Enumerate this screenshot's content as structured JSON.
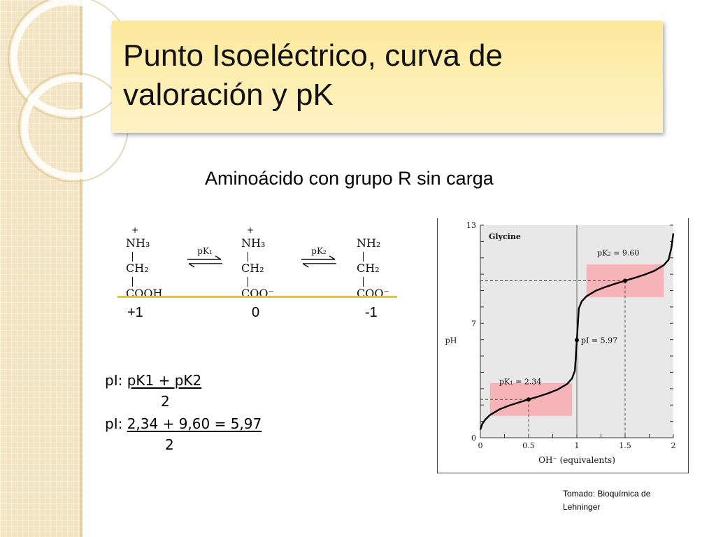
{
  "slide": {
    "title_line1": "Punto Isoeléctrico, curva de",
    "title_line2": "valoración y pK",
    "subtitle": "Aminoácido con grupo R sin carga"
  },
  "scheme": {
    "species": [
      {
        "charge_sign": "+",
        "top": "NH3",
        "middle": "CH2",
        "bottom": "COOH"
      },
      {
        "charge_sign": "+",
        "top": "NH3",
        "middle": "CH2",
        "bottom": "COO⁻"
      },
      {
        "charge_sign": "",
        "top": "NH2",
        "middle": "CH2",
        "bottom": "COO⁻"
      }
    ],
    "arrows": [
      {
        "label": "pK₁"
      },
      {
        "label": "pK₂"
      }
    ],
    "net_charges": [
      "+1",
      "0",
      "-1"
    ]
  },
  "formulas": {
    "line1_prefix": "pI:",
    "line1_numerator": "pK1 + pK2",
    "line1_denominator": "2",
    "line2_prefix": "pI:",
    "line2_numerator": "2,34 + 9,60 = 5,97",
    "line2_denominator": "2"
  },
  "chart_data": {
    "type": "line",
    "title": "Glycine",
    "xlabel": "OH⁻ (equivalents)",
    "ylabel": "pH",
    "xlim": [
      0,
      2
    ],
    "ylim": [
      0,
      13
    ],
    "x_ticks": [
      "0",
      "0.5",
      "1",
      "1.5",
      "2"
    ],
    "y_ticks": [
      "0",
      "7",
      "13"
    ],
    "series": [
      {
        "x": [
          0,
          0.02,
          0.05,
          0.1,
          0.2,
          0.3,
          0.4,
          0.5,
          0.6,
          0.7,
          0.8,
          0.9,
          0.95,
          0.98,
          1.0,
          1.02,
          1.05,
          1.1,
          1.2,
          1.3,
          1.4,
          1.5,
          1.6,
          1.7,
          1.8,
          1.9,
          1.95,
          1.98,
          2.0
        ],
        "y": [
          0.5,
          0.85,
          1.1,
          1.39,
          1.74,
          1.97,
          2.16,
          2.34,
          2.52,
          2.71,
          2.94,
          3.29,
          3.62,
          4.1,
          5.97,
          7.9,
          8.34,
          8.65,
          9.0,
          9.23,
          9.42,
          9.6,
          9.78,
          9.97,
          10.2,
          10.55,
          10.88,
          11.6,
          12.5
        ]
      }
    ],
    "annotations": [
      {
        "text": "pK₁ = 2.34",
        "x": 0.5,
        "y": 2.34
      },
      {
        "text": "pI = 5.97",
        "x": 1.0,
        "y": 5.97
      },
      {
        "text": "pK₂ = 9.60",
        "x": 1.5,
        "y": 9.6
      }
    ],
    "buffer_regions": [
      {
        "x": [
          0.1,
          0.95
        ],
        "y": [
          1.34,
          3.34
        ]
      },
      {
        "x": [
          1.1,
          1.9
        ],
        "y": [
          8.6,
          10.6
        ]
      }
    ],
    "grid": false,
    "colors": {
      "buffer": "#f6b3b8",
      "plot_bg": "#e8e8e8",
      "curve": "#000000"
    }
  },
  "source": {
    "line1": "Tomado: Bioquímica de",
    "line2": "Lehninger"
  }
}
